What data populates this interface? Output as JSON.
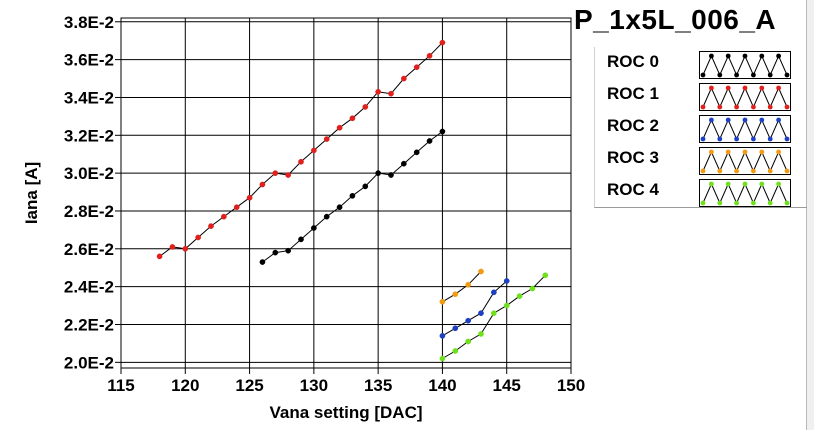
{
  "chart_data": {
    "type": "line",
    "title": "P_1x5L_006_A",
    "xlabel": "Vana setting [DAC]",
    "ylabel": "Iana [A]",
    "xlim": [
      115,
      150
    ],
    "ylim": [
      0.0197,
      0.0382
    ],
    "x_ticks": [
      115,
      120,
      125,
      130,
      135,
      140,
      145,
      150
    ],
    "y_ticks": [
      0.02,
      0.022,
      0.024,
      0.026,
      0.028,
      0.03,
      0.032,
      0.034,
      0.036,
      0.038
    ],
    "y_tick_labels": [
      "2.0E-2",
      "2.2E-2",
      "2.4E-2",
      "2.6E-2",
      "2.8E-2",
      "3.0E-2",
      "3.2E-2",
      "3.4E-2",
      "3.6E-2",
      "3.8E-2"
    ],
    "grid": true,
    "legend_position": "right",
    "series": [
      {
        "name": "ROC 0",
        "color": "#000000",
        "x": [
          126,
          127,
          128,
          129,
          130,
          131,
          132,
          133,
          134,
          135,
          136,
          137,
          138,
          139,
          140
        ],
        "y": [
          0.0253,
          0.0258,
          0.0259,
          0.0265,
          0.0271,
          0.0277,
          0.0282,
          0.0288,
          0.0293,
          0.03,
          0.0299,
          0.0305,
          0.0311,
          0.0317,
          0.0322
        ]
      },
      {
        "name": "ROC 1",
        "color": "#e0201c",
        "x": [
          118,
          119,
          120,
          121,
          122,
          123,
          124,
          125,
          126,
          127,
          128,
          129,
          130,
          131,
          132,
          133,
          134,
          135,
          136,
          137,
          138,
          139,
          140
        ],
        "y": [
          0.0256,
          0.0261,
          0.026,
          0.0266,
          0.0272,
          0.0277,
          0.0282,
          0.0287,
          0.0294,
          0.03,
          0.0299,
          0.0306,
          0.0312,
          0.0318,
          0.0324,
          0.0329,
          0.0335,
          0.0343,
          0.0342,
          0.035,
          0.0356,
          0.0362,
          0.0369
        ]
      },
      {
        "name": "ROC 2",
        "color": "#1c3fc4",
        "x": [
          140,
          141,
          142,
          143,
          144,
          145
        ],
        "y": [
          0.0214,
          0.0218,
          0.0222,
          0.0226,
          0.0237,
          0.0243
        ]
      },
      {
        "name": "ROC 3",
        "color": "#f29a12",
        "x": [
          140,
          141,
          142,
          143
        ],
        "y": [
          0.0232,
          0.0236,
          0.0241,
          0.0248
        ]
      },
      {
        "name": "ROC 4",
        "color": "#6ee01c",
        "x": [
          140,
          141,
          142,
          143,
          144,
          145,
          146,
          147,
          148
        ],
        "y": [
          0.0202,
          0.0206,
          0.0211,
          0.0215,
          0.0226,
          0.023,
          0.0235,
          0.0239,
          0.0246
        ]
      }
    ]
  }
}
